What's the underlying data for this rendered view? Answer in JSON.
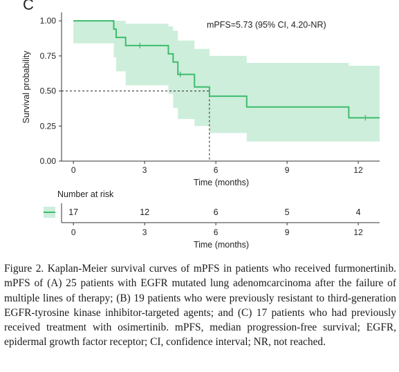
{
  "panel_label": "C",
  "chart_data": {
    "type": "line",
    "subtype": "kaplan-meier",
    "annotation": "mPFS=5.73 (95% CI, 4.20-NR)",
    "xlabel": "Time (months)",
    "ylabel": "Survival probability",
    "xlim": [
      -0.5,
      12.9
    ],
    "ylim": [
      0,
      1.06
    ],
    "xticks": [
      0,
      3,
      6,
      9,
      12
    ],
    "xtick_labels": [
      "0",
      "3",
      "6",
      "9",
      "12"
    ],
    "yticks": [
      0,
      0.25,
      0.5,
      0.75,
      1.0
    ],
    "ytick_labels": [
      "0.00",
      "0.25",
      "0.50",
      "0.75",
      "1.00"
    ],
    "grid": false,
    "series": [
      {
        "color": "#3dbb6c",
        "ci_color": "#cdeedb",
        "x": [
          0,
          1.7,
          1.8,
          2.2,
          4.0,
          4.2,
          4.4,
          5.1,
          5.73,
          7.3,
          11.6,
          12.9
        ],
        "survival": [
          1.0,
          0.941,
          0.882,
          0.824,
          0.765,
          0.706,
          0.618,
          0.529,
          0.463,
          0.386,
          0.309,
          0.309
        ],
        "ci_lower": [
          1.0,
          0.84,
          0.74,
          0.64,
          0.54,
          0.48,
          0.38,
          0.3,
          0.25,
          0.2,
          0.14,
          0.14
        ],
        "ci_upper": [
          1.0,
          1.0,
          1.0,
          0.98,
          0.96,
          0.93,
          0.86,
          0.8,
          0.75,
          0.7,
          0.68,
          0.68
        ],
        "censored": [
          {
            "x": 2.8,
            "y": 0.824
          },
          {
            "x": 4.5,
            "y": 0.618
          },
          {
            "x": 12.3,
            "y": 0.309
          }
        ]
      }
    ],
    "median_reference": {
      "x": 5.73,
      "y": 0.5
    },
    "risk_table": {
      "title": "Number at risk",
      "times": [
        0,
        3,
        6,
        9,
        12
      ],
      "counts": [
        "17",
        "12",
        "6",
        "5",
        "4"
      ],
      "xlabel": "Time (months)"
    }
  },
  "caption": "Figure 2. Kaplan-Meier survival curves of mPFS in patients who received furmonertinib. mPFS of (A) 25 patients with EGFR mutated lung adenomcarcinoma after the failure of multiple lines of therapy; (B) 19 patients who were previously resistant to third-generation EGFR-tyrosine kinase inhibitor-targeted agents; and (C) 17 patients who had previously received treatment with osimertinib. mPFS, median progression-free survival; EGFR, epidermal growth factor receptor; CI, confidence interval; NR, not reached."
}
